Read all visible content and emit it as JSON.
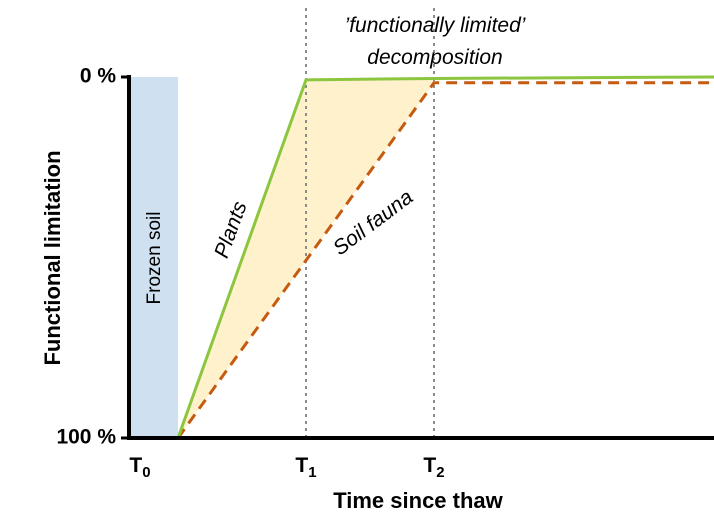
{
  "chart_data": {
    "type": "line",
    "xlabel": "Time since thaw",
    "ylabel": "Functional limitation",
    "x_ticks": [
      {
        "base": "T",
        "sub": "0",
        "x": 0
      },
      {
        "base": "T",
        "sub": "1",
        "x": 1
      },
      {
        "base": "T",
        "sub": "2",
        "x": 2
      }
    ],
    "y_ticks": [
      {
        "label": "0 %",
        "y": 0
      },
      {
        "label": "100 %",
        "y": 100
      }
    ],
    "xlim": [
      -0.4,
      4.2
    ],
    "ylim": [
      0,
      100
    ],
    "y_inverted": true,
    "series": [
      {
        "name": "Plants",
        "style": "solid",
        "color": "#8cc63f",
        "points": [
          [
            0,
            100
          ],
          [
            1,
            0.8
          ],
          [
            2,
            0.4
          ],
          [
            4.2,
            0
          ]
        ]
      },
      {
        "name": "Soil fauna",
        "style": "dashed",
        "color": "#c55a11",
        "points": [
          [
            0,
            100
          ],
          [
            2,
            1.6
          ],
          [
            4.2,
            1.6
          ]
        ]
      }
    ],
    "frozen_period": {
      "label": "Frozen soil",
      "x_start": -0.4,
      "x_end": 0,
      "color": "#cfe0f1"
    },
    "limited_region": {
      "label_line1": "’functionally limited’",
      "label_line2": "decomposition",
      "color": "#fff1cc"
    },
    "reference_lines": [
      1,
      2
    ]
  }
}
